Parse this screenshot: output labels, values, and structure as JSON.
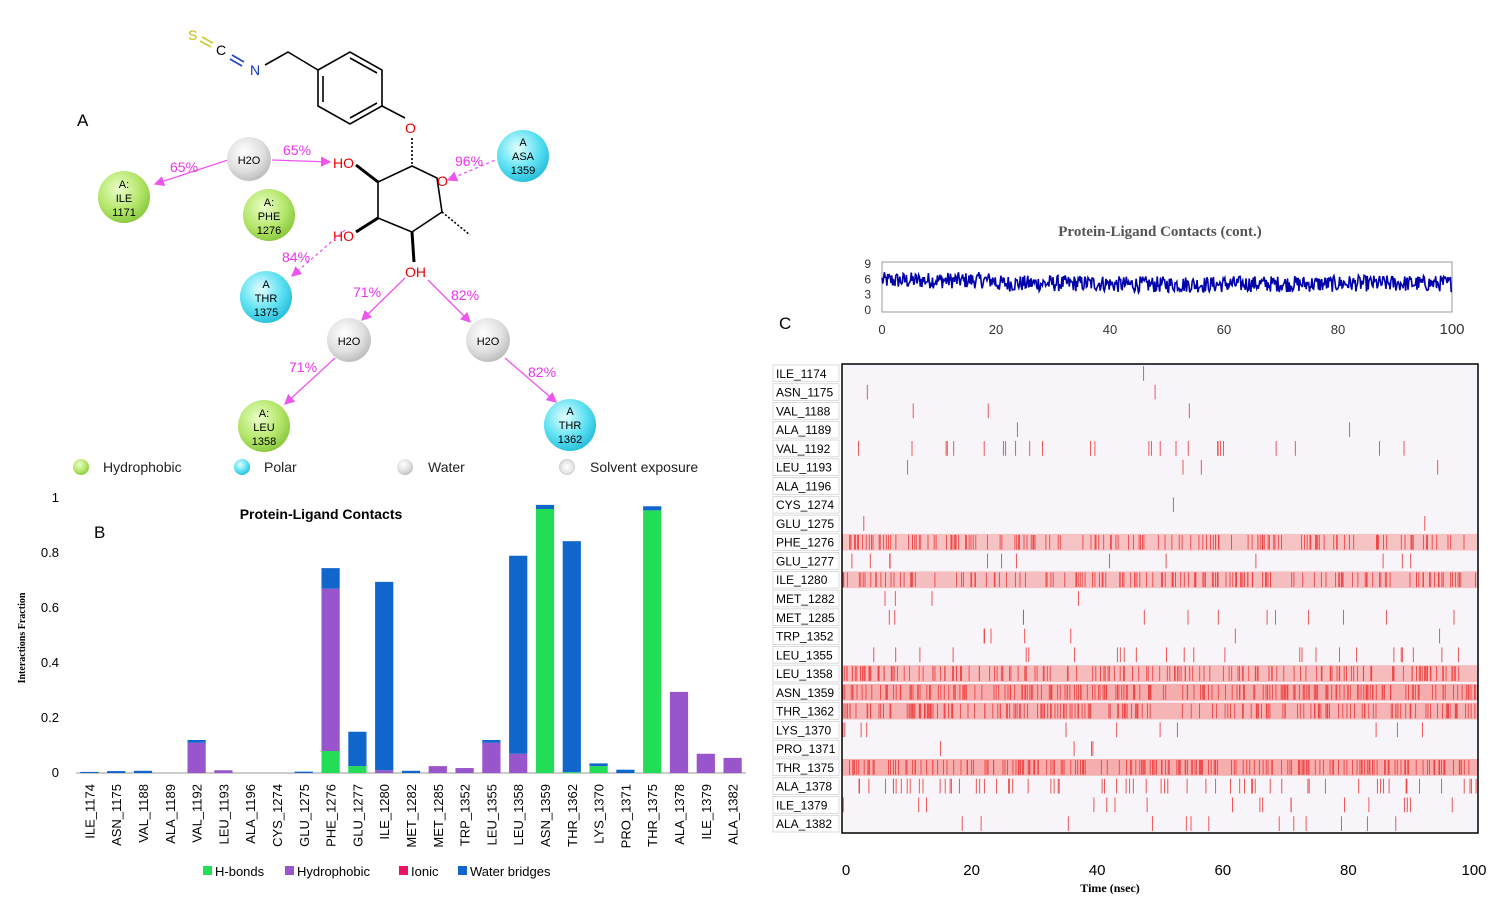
{
  "panel_labels": {
    "a": "A",
    "b": "B",
    "c": "C"
  },
  "colors": {
    "hbond": "#22dd55",
    "hydrophobic": "#9955cc",
    "ionic": "#ee1166",
    "water_bridge": "#1166cc",
    "polar_arrow": "#ee44ee",
    "oxygen": "#ee0000",
    "sulfur": "#ddcc00",
    "nitrogen": "#1133cc",
    "contact_line": "#0000aa",
    "tick_strong": "#ee4444",
    "tick_light": "#f4a0a0"
  },
  "diagram": {
    "atoms": {
      "s": "S",
      "c": "C",
      "n": "N",
      "o_link": "O",
      "o_ring": "O",
      "ho1": "HO",
      "ho2": "HO",
      "oh": "OH"
    },
    "residues": {
      "ile1171": {
        "chain": "A:",
        "name": "ILE",
        "num": "1171"
      },
      "phe1276": {
        "chain": "A:",
        "name": "PHE",
        "num": "1276"
      },
      "asa1359": {
        "chain": "A",
        "name": "ASA",
        "num": "1359"
      },
      "thr1375": {
        "chain": "A",
        "name": "THR",
        "num": "1375"
      },
      "leu1358": {
        "chain": "A:",
        "name": "LEU",
        "num": "1358"
      },
      "thr1362": {
        "chain": "A",
        "name": "THR",
        "num": "1362"
      }
    },
    "waters": {
      "w1": "H2O",
      "w2": "H2O",
      "w3": "H2O"
    },
    "percents": {
      "ile_w1": "65%",
      "w1_ho": "65%",
      "asa_o": "96%",
      "thr_ho": "84%",
      "oh_w2": "71%",
      "w2_leu": "71%",
      "oh_w3": "82%",
      "w3_thr": "82%"
    },
    "legend": {
      "hydrophobic": "Hydrophobic",
      "polar": "Polar",
      "water": "Water",
      "solvent": "Solvent exposure"
    }
  },
  "chart_data": [
    {
      "type": "bar",
      "title": "Protein-Ligand Contacts",
      "ylabel": "Interactions Fraction",
      "xlabel": "",
      "ylim": [
        0,
        1
      ],
      "yticks": [
        "0",
        "0.2",
        "0.4",
        "0.6",
        "0.8",
        "1"
      ],
      "categories": [
        "ILE_1174",
        "ASN_1175",
        "VAL_1188",
        "ALA_1189",
        "VAL_1192",
        "LEU_1193",
        "ALA_1196",
        "CYS_1274",
        "GLU_1275",
        "PHE_1276",
        "GLU_1277",
        "ILE_1280",
        "MET_1282",
        "MET_1285",
        "TRP_1352",
        "LEU_1355",
        "LEU_1358",
        "ASN_1359",
        "THR_1362",
        "LYS_1370",
        "PRO_1371",
        "THR_1375",
        "ALA_1378",
        "ILE_1379",
        "ALA_1382"
      ],
      "series": [
        {
          "name": "H-bonds",
          "values": [
            0,
            0,
            0,
            0,
            0,
            0,
            0,
            0,
            0,
            0.08,
            0.025,
            0,
            0,
            0,
            0,
            0,
            0,
            0.96,
            0.003,
            0.025,
            0,
            0.955,
            0,
            0,
            0
          ]
        },
        {
          "name": "Hydrophobic",
          "values": [
            0,
            0,
            0,
            0,
            0.11,
            0.01,
            0,
            0,
            0,
            0.59,
            0,
            0.01,
            0,
            0.025,
            0.018,
            0.11,
            0.07,
            0,
            0,
            0,
            0,
            0,
            0.295,
            0.07,
            0.055
          ]
        },
        {
          "name": "Ionic",
          "values": [
            0,
            0,
            0,
            0,
            0,
            0,
            0,
            0,
            0,
            0,
            0,
            0,
            0,
            0,
            0,
            0,
            0,
            0,
            0,
            0,
            0,
            0,
            0,
            0,
            0
          ]
        },
        {
          "name": "Water bridges",
          "values": [
            0.004,
            0.007,
            0.008,
            0,
            0.01,
            0,
            0,
            0,
            0.005,
            0.075,
            0.125,
            0.685,
            0.008,
            0,
            0,
            0.01,
            0.72,
            0.015,
            0.84,
            0.01,
            0.012,
            0.015,
            0,
            0,
            0
          ]
        }
      ],
      "legend_position": "bottom"
    },
    {
      "type": "line",
      "title": "Protein-Ligand Contacts (cont.)",
      "xlim": [
        0,
        100
      ],
      "ylim": [
        0,
        9
      ],
      "xticks": [
        "0",
        "20",
        "40",
        "60",
        "80",
        "100"
      ],
      "yticks": [
        "9",
        "6",
        "3",
        "0"
      ],
      "x_start": 0,
      "x_end": 100,
      "level_segments": [
        {
          "x_from": 0,
          "x_to": 20,
          "mean": 5.8
        },
        {
          "x_from": 20,
          "x_to": 40,
          "mean": 5.2
        },
        {
          "x_from": 40,
          "x_to": 60,
          "mean": 5.0
        },
        {
          "x_from": 60,
          "x_to": 80,
          "mean": 5.1
        },
        {
          "x_from": 80,
          "x_to": 100,
          "mean": 5.2
        }
      ],
      "fluctuation": 1.6
    },
    {
      "type": "heatmap",
      "xlabel": "Time (nsec)",
      "xlim": [
        0,
        100
      ],
      "xticks": [
        "0",
        "20",
        "40",
        "60",
        "80",
        "100"
      ],
      "residues": [
        "ILE_1174",
        "ASN_1175",
        "VAL_1188",
        "ALA_1189",
        "VAL_1192",
        "LEU_1193",
        "ALA_1196",
        "CYS_1274",
        "GLU_1275",
        "PHE_1276",
        "GLU_1277",
        "ILE_1280",
        "MET_1282",
        "MET_1285",
        "TRP_1352",
        "LEU_1355",
        "LEU_1358",
        "ASN_1359",
        "THR_1362",
        "LYS_1370",
        "PRO_1371",
        "THR_1375",
        "ALA_1378",
        "ILE_1379",
        "ALA_1382"
      ],
      "contact_density": [
        0.004,
        0.008,
        0.015,
        0.01,
        0.12,
        0.02,
        0.002,
        0.004,
        0.01,
        0.65,
        0.06,
        0.7,
        0.02,
        0.06,
        0.03,
        0.12,
        0.75,
        0.96,
        0.84,
        0.05,
        0.02,
        0.95,
        0.3,
        0.08,
        0.06
      ]
    }
  ],
  "legend_b": [
    "H-bonds",
    "Hydrophobic",
    "Ionic",
    "Water bridges"
  ]
}
